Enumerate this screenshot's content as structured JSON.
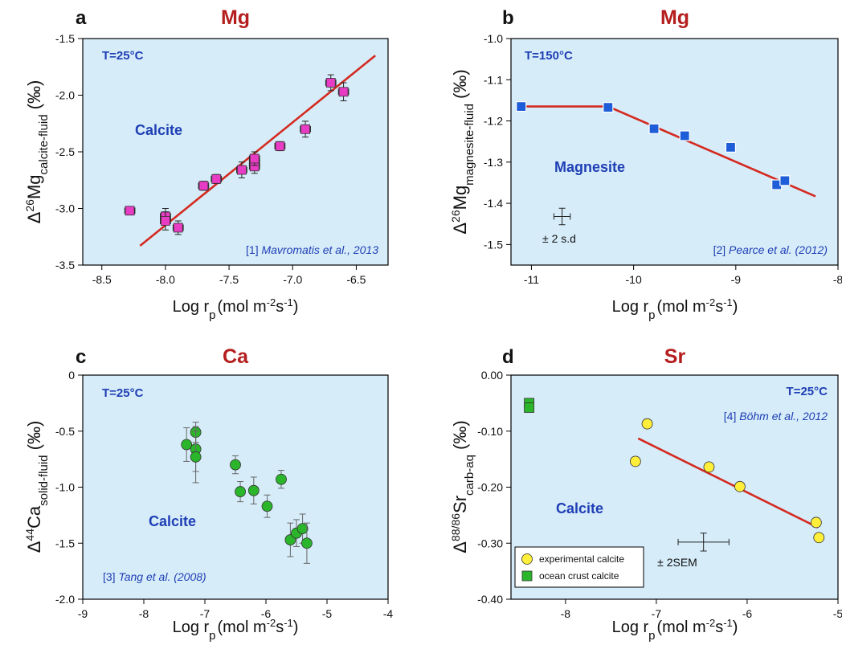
{
  "chart_data": [
    {
      "id": "a",
      "type": "scatter",
      "panel_letter": "a",
      "title": "Mg",
      "xlabel": "Log r",
      "xlabel_sub": "p",
      "xlabel_units": "(mol m",
      "xlabel_units_sup1": "-2",
      "xlabel_units_mid": "s",
      "xlabel_units_sup2": "-1",
      "xlabel_units_end": ")",
      "ylabel_prefix": "Δ",
      "ylabel_sup": "26",
      "ylabel_main": "Mg",
      "ylabel_sub": "calcite-fluid",
      "ylabel_suffix": " (‰)",
      "xlim": [
        -8.65,
        -6.25
      ],
      "ylim": [
        -3.5,
        -1.5
      ],
      "xticks": [
        -8.5,
        -8.0,
        -7.5,
        -7.0,
        -6.5
      ],
      "xtick_labels": [
        "-8.5",
        "-8.0",
        "-7.5",
        "-7.0",
        "-6.5"
      ],
      "yticks": [
        -3.5,
        -3.0,
        -2.5,
        -2.0,
        -1.5
      ],
      "ytick_labels": [
        "-3.5",
        "-3.0",
        "-2.5",
        "-2.0",
        "-1.5"
      ],
      "temperature": "T=25°C",
      "mineral": "Calcite",
      "reference": "[1] ",
      "reference_italic": "Mavromatis et al., 2013",
      "marker": "square",
      "marker_color": "#e83cc4",
      "line_color": "#d42a20",
      "fit_line": [
        [
          -8.2,
          -3.33
        ],
        [
          -6.35,
          -1.65
        ]
      ],
      "series": [
        {
          "x": [
            -8.28,
            -8.0,
            -8.0,
            -7.9,
            -7.7,
            -7.6,
            -7.4,
            -7.3,
            -7.3,
            -7.3,
            -7.1,
            -6.9,
            -6.7,
            -6.6
          ],
          "y": [
            -3.02,
            -3.07,
            -3.11,
            -3.17,
            -2.8,
            -2.74,
            -2.66,
            -2.6,
            -2.63,
            -2.56,
            -2.45,
            -2.3,
            -1.89,
            -1.97
          ],
          "xerr": [
            0.04,
            0.04,
            0.04,
            0.04,
            0.04,
            0.04,
            0.04,
            0.04,
            0.04,
            0.04,
            0.04,
            0.04,
            0.04,
            0.04
          ],
          "yerr": [
            0.02,
            0.07,
            0.08,
            0.06,
            0.04,
            0.04,
            0.07,
            0.06,
            0.06,
            0.06,
            0.04,
            0.07,
            0.07,
            0.08
          ]
        }
      ]
    },
    {
      "id": "b",
      "type": "scatter",
      "panel_letter": "b",
      "title": "Mg",
      "xlabel": "Log r",
      "xlabel_sub": "p",
      "xlabel_units": "(mol m",
      "xlabel_units_sup1": "-2",
      "xlabel_units_mid": "s",
      "xlabel_units_sup2": "-1",
      "xlabel_units_end": ")",
      "ylabel_prefix": "Δ",
      "ylabel_sup": "26",
      "ylabel_main": "Mg",
      "ylabel_sub": "magnesite-fluid",
      "ylabel_suffix": " (‰)",
      "xlim": [
        -11.2,
        -8
      ],
      "ylim": [
        -1.55,
        -1.0
      ],
      "xticks": [
        -11,
        -10,
        -9,
        -8
      ],
      "xtick_labels": [
        "-11",
        "-10",
        "-9",
        "-8"
      ],
      "yticks": [
        -1.5,
        -1.4,
        -1.3,
        -1.2,
        -1.1,
        -1.0
      ],
      "ytick_labels": [
        "-1.5",
        "-1.4",
        "-1.3",
        "-1.2",
        "-1.1",
        "-1.0"
      ],
      "temperature": "T=150°C",
      "mineral": "Magnesite",
      "reference": "[2] ",
      "reference_italic": "Pearce et al. (2012)",
      "error_label": "± 2 s.d",
      "error_example": {
        "x": -10.7,
        "y": -1.432,
        "xerr": 0.08,
        "yerr": 0.02
      },
      "marker": "square",
      "marker_color": "#1d5ed8",
      "line_color": "#d42a20",
      "fit_line": [
        [
          -11.1,
          -1.165
        ],
        [
          -10.25,
          -1.165
        ],
        [
          -8.22,
          -1.383
        ]
      ],
      "series": [
        {
          "x": [
            -11.1,
            -10.25,
            -9.8,
            -9.5,
            -9.05,
            -8.6,
            -8.52
          ],
          "y": [
            -1.165,
            -1.167,
            -1.219,
            -1.236,
            -1.264,
            -1.355,
            -1.345
          ]
        }
      ]
    },
    {
      "id": "c",
      "type": "scatter",
      "panel_letter": "c",
      "title": "Ca",
      "xlabel": "Log r",
      "xlabel_sub": "p",
      "xlabel_units": "(mol m",
      "xlabel_units_sup1": "-2",
      "xlabel_units_mid": "s",
      "xlabel_units_sup2": "-1",
      "xlabel_units_end": ")",
      "ylabel_prefix": "Δ",
      "ylabel_sup": "44",
      "ylabel_main": "Ca",
      "ylabel_sub": "solid-fluid",
      "ylabel_suffix": " (‰)",
      "xlim": [
        -9,
        -4
      ],
      "ylim": [
        -2.0,
        0
      ],
      "xticks": [
        -9,
        -8,
        -7,
        -6,
        -5,
        -4
      ],
      "xtick_labels": [
        "-9",
        "-8",
        "-7",
        "-6",
        "-5",
        "-4"
      ],
      "yticks": [
        -2.0,
        -1.5,
        -1.0,
        -0.5,
        0
      ],
      "ytick_labels": [
        "-2.0",
        "-1.5",
        "-1.0",
        "-0.5",
        "0"
      ],
      "temperature": "T=25°C",
      "mineral": "Calcite",
      "reference": "[3] ",
      "reference_italic": "Tang et al. (2008)",
      "marker": "circle",
      "marker_color": "#2bb52b",
      "series": [
        {
          "x": [
            -7.3,
            -7.15,
            -7.15,
            -7.15,
            -6.5,
            -6.42,
            -6.2,
            -5.98,
            -5.75,
            -5.6,
            -5.5,
            -5.4,
            -5.33
          ],
          "y": [
            -0.62,
            -0.51,
            -0.66,
            -0.73,
            -0.8,
            -1.04,
            -1.03,
            -1.17,
            -0.93,
            -1.47,
            -1.41,
            -1.37,
            -1.5
          ],
          "yerr": [
            0.15,
            0.09,
            0.2,
            0.23,
            0.08,
            0.09,
            0.12,
            0.1,
            0.08,
            0.15,
            0.12,
            0.13,
            0.18
          ]
        }
      ]
    },
    {
      "id": "d",
      "type": "scatter",
      "panel_letter": "d",
      "title": "Sr",
      "xlabel": "Log r",
      "xlabel_sub": "p",
      "xlabel_units": "(mol m",
      "xlabel_units_sup1": "-2",
      "xlabel_units_mid": "s",
      "xlabel_units_sup2": "-1",
      "xlabel_units_end": ")",
      "ylabel_prefix": "Δ",
      "ylabel_sup": "88/86",
      "ylabel_main": "Sr",
      "ylabel_sub": "carb-aq",
      "ylabel_suffix": " (‰)",
      "xlim": [
        -8.6,
        -5
      ],
      "ylim": [
        -0.4,
        0.0
      ],
      "xticks": [
        -8,
        -7,
        -6,
        -5
      ],
      "xtick_labels": [
        "-8",
        "-7",
        "-6",
        "-5"
      ],
      "yticks": [
        -0.4,
        -0.3,
        -0.2,
        -0.1,
        0.0
      ],
      "ytick_labels": [
        "-0.40",
        "-0.30",
        "-0.20",
        "-0.10",
        "0.00"
      ],
      "temperature": "T=25°C",
      "mineral": "Calcite",
      "reference": "[4] ",
      "reference_italic": "Böhm et al., 2012",
      "error_label": "± 2SEM",
      "error_example": {
        "x": -6.48,
        "y": -0.298,
        "xerr": 0.28,
        "yerr": 0.016
      },
      "line_color": "#d42a20",
      "fit_line": [
        [
          -7.2,
          -0.113
        ],
        [
          -5.22,
          -0.272
        ]
      ],
      "legend_position": "bottom-left",
      "series": [
        {
          "name": "experimental calcite",
          "marker": "circle",
          "color": "#ffef3a",
          "x": [
            -7.23,
            -7.1,
            -6.42,
            -6.08,
            -5.24,
            -5.21
          ],
          "y": [
            -0.154,
            -0.087,
            -0.164,
            -0.199,
            -0.263,
            -0.29
          ]
        },
        {
          "name": "ocean crust calcite",
          "marker": "square",
          "color": "#2bb52b",
          "x": [
            -8.4,
            -8.4
          ],
          "y": [
            -0.05,
            -0.058
          ]
        }
      ]
    }
  ]
}
